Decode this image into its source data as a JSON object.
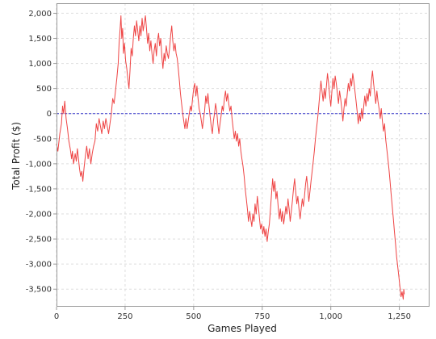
{
  "chart_data": {
    "type": "line",
    "xlabel": "Games Played",
    "ylabel": "Total Profit ($)",
    "xlim": [
      0,
      1360
    ],
    "ylim": [
      -3850,
      2200
    ],
    "x_ticks": [
      0,
      250,
      500,
      750,
      1000,
      1250
    ],
    "x_tick_labels": [
      "0",
      "250",
      "500",
      "750",
      "1,000",
      "1,250"
    ],
    "y_ticks": [
      2000,
      1500,
      1000,
      500,
      0,
      -500,
      -1000,
      -1500,
      -2000,
      -2500,
      -3000,
      -3500
    ],
    "y_tick_labels": [
      "2,000",
      "1,500",
      "1,000",
      "500",
      "0",
      "-500",
      "-1,000",
      "-1,500",
      "-2,000",
      "-2,500",
      "-3,000",
      "-3,500"
    ],
    "grid": true,
    "reference_line": {
      "y": 0,
      "color": "#3333cc",
      "style": "dashed"
    },
    "colors": {
      "series": "#ee4444",
      "background": "#ffffff",
      "grid": "#dddddd",
      "frame": "#999999"
    },
    "series": [
      {
        "points": [
          [
            0,
            -600
          ],
          [
            5,
            -750
          ],
          [
            12,
            -400
          ],
          [
            18,
            -200
          ],
          [
            22,
            150
          ],
          [
            26,
            0
          ],
          [
            30,
            250
          ],
          [
            35,
            -100
          ],
          [
            40,
            -300
          ],
          [
            45,
            -550
          ],
          [
            50,
            -700
          ],
          [
            55,
            -900
          ],
          [
            58,
            -750
          ],
          [
            62,
            -1000
          ],
          [
            68,
            -800
          ],
          [
            72,
            -950
          ],
          [
            76,
            -700
          ],
          [
            80,
            -900
          ],
          [
            84,
            -1100
          ],
          [
            88,
            -1250
          ],
          [
            92,
            -1150
          ],
          [
            96,
            -1350
          ],
          [
            100,
            -1100
          ],
          [
            105,
            -850
          ],
          [
            110,
            -650
          ],
          [
            115,
            -900
          ],
          [
            120,
            -700
          ],
          [
            125,
            -1000
          ],
          [
            130,
            -800
          ],
          [
            135,
            -650
          ],
          [
            140,
            -550
          ],
          [
            145,
            -200
          ],
          [
            150,
            -350
          ],
          [
            155,
            -100
          ],
          [
            160,
            -250
          ],
          [
            165,
            -400
          ],
          [
            170,
            -150
          ],
          [
            175,
            -300
          ],
          [
            180,
            -100
          ],
          [
            185,
            -250
          ],
          [
            190,
            -400
          ],
          [
            195,
            -200
          ],
          [
            200,
            0
          ],
          [
            205,
            300
          ],
          [
            210,
            200
          ],
          [
            215,
            450
          ],
          [
            220,
            700
          ],
          [
            225,
            1000
          ],
          [
            228,
            1400
          ],
          [
            232,
            1700
          ],
          [
            235,
            1950
          ],
          [
            238,
            1500
          ],
          [
            241,
            1700
          ],
          [
            244,
            1200
          ],
          [
            248,
            1400
          ],
          [
            252,
            1050
          ],
          [
            256,
            900
          ],
          [
            260,
            700
          ],
          [
            264,
            500
          ],
          [
            268,
            850
          ],
          [
            272,
            1300
          ],
          [
            276,
            1150
          ],
          [
            280,
            1500
          ],
          [
            284,
            1750
          ],
          [
            288,
            1550
          ],
          [
            292,
            1850
          ],
          [
            296,
            1650
          ],
          [
            300,
            1450
          ],
          [
            304,
            1750
          ],
          [
            308,
            1550
          ],
          [
            312,
            1900
          ],
          [
            316,
            1650
          ],
          [
            320,
            1800
          ],
          [
            324,
            1950
          ],
          [
            328,
            1700
          ],
          [
            332,
            1400
          ],
          [
            336,
            1600
          ],
          [
            340,
            1250
          ],
          [
            344,
            1450
          ],
          [
            348,
            1200
          ],
          [
            352,
            1000
          ],
          [
            356,
            1250
          ],
          [
            360,
            1400
          ],
          [
            364,
            1150
          ],
          [
            368,
            1450
          ],
          [
            372,
            1600
          ],
          [
            376,
            1350
          ],
          [
            380,
            1500
          ],
          [
            384,
            1150
          ],
          [
            388,
            900
          ],
          [
            392,
            1200
          ],
          [
            396,
            1050
          ],
          [
            400,
            1350
          ],
          [
            404,
            1200
          ],
          [
            408,
            1100
          ],
          [
            412,
            1300
          ],
          [
            416,
            1550
          ],
          [
            420,
            1750
          ],
          [
            424,
            1450
          ],
          [
            428,
            1250
          ],
          [
            432,
            1400
          ],
          [
            436,
            1200
          ],
          [
            440,
            1100
          ],
          [
            444,
            900
          ],
          [
            448,
            650
          ],
          [
            452,
            400
          ],
          [
            456,
            200
          ],
          [
            460,
            0
          ],
          [
            464,
            -150
          ],
          [
            468,
            -300
          ],
          [
            472,
            -100
          ],
          [
            476,
            -300
          ],
          [
            480,
            -150
          ],
          [
            484,
            0
          ],
          [
            488,
            150
          ],
          [
            492,
            50
          ],
          [
            496,
            300
          ],
          [
            500,
            500
          ],
          [
            504,
            600
          ],
          [
            508,
            350
          ],
          [
            512,
            550
          ],
          [
            516,
            300
          ],
          [
            520,
            100
          ],
          [
            524,
            0
          ],
          [
            528,
            -150
          ],
          [
            532,
            -300
          ],
          [
            536,
            -100
          ],
          [
            540,
            50
          ],
          [
            544,
            350
          ],
          [
            548,
            200
          ],
          [
            552,
            400
          ],
          [
            556,
            150
          ],
          [
            560,
            -50
          ],
          [
            564,
            -250
          ],
          [
            568,
            -400
          ],
          [
            572,
            -150
          ],
          [
            576,
            0
          ],
          [
            580,
            200
          ],
          [
            584,
            50
          ],
          [
            588,
            -200
          ],
          [
            592,
            -400
          ],
          [
            596,
            -200
          ],
          [
            600,
            -50
          ],
          [
            604,
            150
          ],
          [
            608,
            50
          ],
          [
            612,
            300
          ],
          [
            616,
            450
          ],
          [
            620,
            250
          ],
          [
            624,
            400
          ],
          [
            628,
            200
          ],
          [
            632,
            50
          ],
          [
            636,
            150
          ],
          [
            640,
            -100
          ],
          [
            644,
            -300
          ],
          [
            648,
            -500
          ],
          [
            652,
            -350
          ],
          [
            656,
            -550
          ],
          [
            660,
            -400
          ],
          [
            664,
            -650
          ],
          [
            668,
            -500
          ],
          [
            672,
            -750
          ],
          [
            676,
            -900
          ],
          [
            680,
            -1050
          ],
          [
            684,
            -1250
          ],
          [
            688,
            -1500
          ],
          [
            692,
            -1700
          ],
          [
            696,
            -1900
          ],
          [
            700,
            -2150
          ],
          [
            704,
            -1950
          ],
          [
            708,
            -2100
          ],
          [
            712,
            -2250
          ],
          [
            716,
            -2000
          ],
          [
            720,
            -2150
          ],
          [
            724,
            -1800
          ],
          [
            728,
            -2000
          ],
          [
            732,
            -1650
          ],
          [
            736,
            -1850
          ],
          [
            740,
            -2100
          ],
          [
            744,
            -2300
          ],
          [
            748,
            -2200
          ],
          [
            752,
            -2400
          ],
          [
            756,
            -2250
          ],
          [
            760,
            -2450
          ],
          [
            764,
            -2300
          ],
          [
            768,
            -2550
          ],
          [
            772,
            -2350
          ],
          [
            776,
            -2200
          ],
          [
            780,
            -1900
          ],
          [
            784,
            -1600
          ],
          [
            788,
            -1300
          ],
          [
            792,
            -1550
          ],
          [
            796,
            -1350
          ],
          [
            800,
            -1700
          ],
          [
            804,
            -1550
          ],
          [
            808,
            -1850
          ],
          [
            812,
            -2100
          ],
          [
            816,
            -1900
          ],
          [
            820,
            -2150
          ],
          [
            824,
            -1950
          ],
          [
            828,
            -2200
          ],
          [
            832,
            -2050
          ],
          [
            836,
            -1850
          ],
          [
            840,
            -2000
          ],
          [
            844,
            -1700
          ],
          [
            848,
            -1900
          ],
          [
            852,
            -2150
          ],
          [
            856,
            -1950
          ],
          [
            860,
            -1750
          ],
          [
            864,
            -1500
          ],
          [
            868,
            -1300
          ],
          [
            872,
            -1550
          ],
          [
            876,
            -1800
          ],
          [
            880,
            -1650
          ],
          [
            884,
            -1900
          ],
          [
            888,
            -2100
          ],
          [
            892,
            -1900
          ],
          [
            896,
            -1700
          ],
          [
            900,
            -1850
          ],
          [
            904,
            -1650
          ],
          [
            908,
            -1400
          ],
          [
            912,
            -1250
          ],
          [
            916,
            -1500
          ],
          [
            920,
            -1750
          ],
          [
            924,
            -1550
          ],
          [
            928,
            -1350
          ],
          [
            932,
            -1150
          ],
          [
            936,
            -950
          ],
          [
            940,
            -750
          ],
          [
            944,
            -500
          ],
          [
            948,
            -300
          ],
          [
            952,
            -100
          ],
          [
            956,
            150
          ],
          [
            960,
            400
          ],
          [
            964,
            650
          ],
          [
            968,
            450
          ],
          [
            972,
            250
          ],
          [
            976,
            500
          ],
          [
            980,
            300
          ],
          [
            984,
            550
          ],
          [
            988,
            800
          ],
          [
            992,
            600
          ],
          [
            996,
            350
          ],
          [
            1000,
            150
          ],
          [
            1004,
            450
          ],
          [
            1008,
            700
          ],
          [
            1012,
            500
          ],
          [
            1016,
            750
          ],
          [
            1020,
            600
          ],
          [
            1024,
            400
          ],
          [
            1028,
            200
          ],
          [
            1032,
            450
          ],
          [
            1036,
            300
          ],
          [
            1040,
            100
          ],
          [
            1044,
            -150
          ],
          [
            1048,
            100
          ],
          [
            1052,
            300
          ],
          [
            1056,
            150
          ],
          [
            1060,
            400
          ],
          [
            1064,
            600
          ],
          [
            1068,
            450
          ],
          [
            1072,
            700
          ],
          [
            1076,
            550
          ],
          [
            1080,
            800
          ],
          [
            1084,
            650
          ],
          [
            1088,
            450
          ],
          [
            1092,
            250
          ],
          [
            1096,
            50
          ],
          [
            1100,
            -200
          ],
          [
            1104,
            0
          ],
          [
            1108,
            -150
          ],
          [
            1112,
            100
          ],
          [
            1116,
            -100
          ],
          [
            1120,
            150
          ],
          [
            1124,
            350
          ],
          [
            1128,
            150
          ],
          [
            1132,
            400
          ],
          [
            1136,
            250
          ],
          [
            1140,
            500
          ],
          [
            1144,
            350
          ],
          [
            1148,
            650
          ],
          [
            1152,
            850
          ],
          [
            1156,
            600
          ],
          [
            1160,
            400
          ],
          [
            1164,
            200
          ],
          [
            1168,
            450
          ],
          [
            1172,
            250
          ],
          [
            1176,
            100
          ],
          [
            1180,
            -100
          ],
          [
            1184,
            100
          ],
          [
            1188,
            -150
          ],
          [
            1192,
            -350
          ],
          [
            1196,
            -200
          ],
          [
            1200,
            -500
          ],
          [
            1204,
            -700
          ],
          [
            1208,
            -900
          ],
          [
            1212,
            -1100
          ],
          [
            1216,
            -1350
          ],
          [
            1220,
            -1600
          ],
          [
            1224,
            -1850
          ],
          [
            1228,
            -2100
          ],
          [
            1232,
            -2350
          ],
          [
            1236,
            -2600
          ],
          [
            1240,
            -2850
          ],
          [
            1244,
            -3050
          ],
          [
            1248,
            -3250
          ],
          [
            1252,
            -3450
          ],
          [
            1256,
            -3650
          ],
          [
            1260,
            -3550
          ],
          [
            1264,
            -3700
          ],
          [
            1266,
            -3500
          ],
          [
            1268,
            -3600
          ]
        ]
      }
    ]
  }
}
